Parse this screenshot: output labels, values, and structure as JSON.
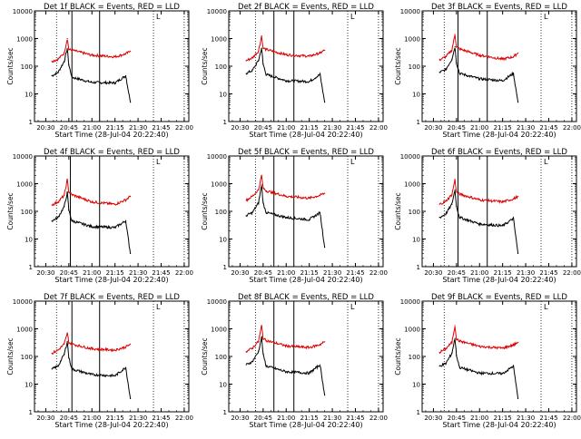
{
  "figure": {
    "xlabel": "Start Time (28-Jul-04 20:22:40)",
    "ylabel": "Counts/sec",
    "legend_letter": "L",
    "x_tick_labels": [
      "20:30",
      "20:45",
      "21:00",
      "21:15",
      "21:30",
      "21:45",
      "22:00"
    ],
    "y_tick_labels": [
      "1",
      "10",
      "100",
      "1000",
      "10000"
    ],
    "colors": {
      "events": "#000000",
      "lld": "#dd0000",
      "axes": "#000000",
      "background": "#ffffff"
    }
  },
  "chart_data": [
    {
      "type": "line",
      "title": "Det 1f  BLACK = Events, RED = LLD",
      "xlabel": "Start Time (28-Jul-04 20:22:40)",
      "ylabel": "Counts/sec",
      "y_scale": "log",
      "xlim": [
        "20:22:40",
        "22:03"
      ],
      "ylim": [
        1,
        10000
      ],
      "x": [
        "20:34",
        "20:38",
        "20:42",
        "20:44",
        "20:45",
        "20:47",
        "21:00",
        "21:15",
        "21:22",
        "21:25"
      ],
      "series": [
        {
          "name": "BLACK = Events",
          "values": [
            45,
            60,
            150,
            430,
            110,
            40,
            26,
            25,
            45,
            5
          ]
        },
        {
          "name": "RED = LLD",
          "values": [
            150,
            180,
            300,
            1000,
            400,
            380,
            250,
            220,
            280,
            350
          ]
        }
      ],
      "vlines_solid": [
        "20:47",
        "21:05"
      ],
      "vlines_dotted": [
        "20:37",
        "21:40",
        "22:00"
      ]
    },
    {
      "type": "line",
      "title": "Det 2f  BLACK = Events, RED = LLD",
      "xlabel": "Start Time (28-Jul-04 20:22:40)",
      "ylabel": "Counts/sec",
      "y_scale": "log",
      "xlim": [
        "20:22:40",
        "22:03"
      ],
      "ylim": [
        1,
        10000
      ],
      "x": [
        "20:34",
        "20:38",
        "20:42",
        "20:44",
        "20:45",
        "20:47",
        "21:00",
        "21:15",
        "21:22",
        "21:25"
      ],
      "series": [
        {
          "name": "BLACK = Events",
          "values": [
            55,
            70,
            160,
            450,
            120,
            50,
            30,
            28,
            50,
            5
          ]
        },
        {
          "name": "RED = LLD",
          "values": [
            160,
            200,
            350,
            1250,
            450,
            400,
            260,
            230,
            300,
            380
          ]
        }
      ],
      "vlines_solid": [
        "20:52",
        "21:05"
      ],
      "vlines_dotted": [
        "20:40",
        "21:40",
        "22:00"
      ]
    },
    {
      "type": "line",
      "title": "Det 3f  BLACK = Events, RED = LLD",
      "xlabel": "Start Time (28-Jul-04 20:22:40)",
      "ylabel": "Counts/sec",
      "y_scale": "log",
      "xlim": [
        "20:22:40",
        "22:03"
      ],
      "ylim": [
        1,
        10000
      ],
      "x": [
        "20:34",
        "20:38",
        "20:42",
        "20:44",
        "20:45",
        "20:47",
        "21:00",
        "21:15",
        "21:22",
        "21:25"
      ],
      "series": [
        {
          "name": "BLACK = Events",
          "values": [
            60,
            75,
            180,
            500,
            130,
            55,
            35,
            30,
            55,
            5
          ]
        },
        {
          "name": "RED = LLD",
          "values": [
            170,
            220,
            380,
            1400,
            500,
            420,
            250,
            180,
            220,
            300
          ]
        }
      ],
      "vlines_solid": [
        "20:46",
        "21:05"
      ],
      "vlines_dotted": [
        "20:37",
        "21:40",
        "22:00"
      ]
    },
    {
      "type": "line",
      "title": "Det 4f  BLACK = Events, RED = LLD",
      "xlabel": "Start Time (28-Jul-04 20:22:40)",
      "ylabel": "Counts/sec",
      "y_scale": "log",
      "xlim": [
        "20:22:40",
        "22:03"
      ],
      "ylim": [
        1,
        10000
      ],
      "x": [
        "20:34",
        "20:38",
        "20:42",
        "20:44",
        "20:45",
        "20:47",
        "21:00",
        "21:15",
        "21:22",
        "21:25"
      ],
      "series": [
        {
          "name": "BLACK = Events",
          "values": [
            45,
            60,
            150,
            480,
            110,
            45,
            28,
            26,
            45,
            3
          ]
        },
        {
          "name": "RED = LLD",
          "values": [
            170,
            220,
            380,
            1400,
            500,
            400,
            220,
            180,
            260,
            350
          ]
        }
      ],
      "vlines_solid": [
        "20:46",
        "21:05"
      ],
      "vlines_dotted": [
        "20:37",
        "21:40",
        "22:00"
      ]
    },
    {
      "type": "line",
      "title": "Det 5f  BLACK = Events, RED = LLD",
      "xlabel": "Start Time (28-Jul-04 20:22:40)",
      "ylabel": "Counts/sec",
      "y_scale": "log",
      "xlim": [
        "20:22:40",
        "22:03"
      ],
      "ylim": [
        1,
        10000
      ],
      "x": [
        "20:34",
        "20:38",
        "20:42",
        "20:44",
        "20:45",
        "20:47",
        "21:00",
        "21:15",
        "21:22",
        "21:25"
      ],
      "series": [
        {
          "name": "BLACK = Events",
          "values": [
            70,
            90,
            200,
            900,
            200,
            90,
            60,
            50,
            90,
            5
          ]
        },
        {
          "name": "RED = LLD",
          "values": [
            250,
            350,
            600,
            2000,
            700,
            550,
            350,
            300,
            380,
            450
          ]
        }
      ],
      "vlines_solid": [
        "20:52",
        "21:05"
      ],
      "vlines_dotted": [
        "20:40",
        "21:40",
        "22:00"
      ]
    },
    {
      "type": "line",
      "title": "Det 6f  BLACK = Events, RED = LLD",
      "xlabel": "Start Time (28-Jul-04 20:22:40)",
      "ylabel": "Counts/sec",
      "y_scale": "log",
      "xlim": [
        "20:22:40",
        "22:03"
      ],
      "ylim": [
        1,
        10000
      ],
      "x": [
        "20:34",
        "20:38",
        "20:42",
        "20:44",
        "20:45",
        "20:47",
        "21:00",
        "21:15",
        "21:22",
        "21:25"
      ],
      "series": [
        {
          "name": "BLACK = Events",
          "values": [
            60,
            80,
            180,
            600,
            150,
            60,
            35,
            30,
            55,
            3
          ]
        },
        {
          "name": "RED = LLD",
          "values": [
            180,
            230,
            400,
            1400,
            500,
            420,
            260,
            220,
            280,
            350
          ]
        }
      ],
      "vlines_solid": [
        "20:46",
        "21:05"
      ],
      "vlines_dotted": [
        "20:37",
        "21:40",
        "22:00"
      ]
    },
    {
      "type": "line",
      "title": "Det 7f  BLACK = Events, RED = LLD",
      "xlabel": "Start Time (28-Jul-04 20:22:40)",
      "ylabel": "Counts/sec",
      "y_scale": "log",
      "xlim": [
        "20:22:40",
        "22:03"
      ],
      "ylim": [
        1,
        10000
      ],
      "x": [
        "20:34",
        "20:38",
        "20:42",
        "20:44",
        "20:45",
        "20:47",
        "21:00",
        "21:15",
        "21:22",
        "21:25"
      ],
      "series": [
        {
          "name": "BLACK = Events",
          "values": [
            35,
            45,
            120,
            350,
            90,
            35,
            22,
            20,
            40,
            3
          ]
        },
        {
          "name": "RED = LLD",
          "values": [
            130,
            170,
            280,
            700,
            320,
            280,
            190,
            170,
            220,
            280
          ]
        }
      ],
      "vlines_solid": [
        "20:47",
        "21:05"
      ],
      "vlines_dotted": [
        "20:37",
        "21:40",
        "22:00"
      ]
    },
    {
      "type": "line",
      "title": "Det 8f  BLACK = Events, RED = LLD",
      "xlabel": "Start Time (28-Jul-04 20:22:40)",
      "ylabel": "Counts/sec",
      "y_scale": "log",
      "xlim": [
        "20:22:40",
        "22:03"
      ],
      "ylim": [
        1,
        10000
      ],
      "x": [
        "20:34",
        "20:38",
        "20:42",
        "20:44",
        "20:45",
        "20:47",
        "21:00",
        "21:15",
        "21:22",
        "21:25"
      ],
      "series": [
        {
          "name": "BLACK = Events",
          "values": [
            50,
            65,
            150,
            500,
            120,
            45,
            28,
            25,
            50,
            4
          ]
        },
        {
          "name": "RED = LLD",
          "values": [
            150,
            200,
            350,
            1300,
            450,
            380,
            240,
            210,
            270,
            340
          ]
        }
      ],
      "vlines_solid": [
        "20:52",
        "21:05"
      ],
      "vlines_dotted": [
        "20:40",
        "21:40",
        "22:00"
      ]
    },
    {
      "type": "line",
      "title": "Det 9f  BLACK = Events, RED = LLD",
      "xlabel": "Start Time (28-Jul-04 20:22:40)",
      "ylabel": "Counts/sec",
      "y_scale": "log",
      "xlim": [
        "20:22:40",
        "22:03"
      ],
      "ylim": [
        1,
        10000
      ],
      "x": [
        "20:34",
        "20:38",
        "20:42",
        "20:44",
        "20:45",
        "20:47",
        "21:00",
        "21:15",
        "21:22",
        "21:25"
      ],
      "series": [
        {
          "name": "BLACK = Events",
          "values": [
            45,
            55,
            130,
            450,
            110,
            40,
            25,
            24,
            45,
            3
          ]
        },
        {
          "name": "RED = LLD",
          "values": [
            140,
            190,
            320,
            1300,
            420,
            360,
            230,
            200,
            260,
            320
          ]
        }
      ],
      "vlines_solid": [],
      "vlines_dotted": [
        "20:37",
        "21:40",
        "22:00"
      ]
    }
  ]
}
